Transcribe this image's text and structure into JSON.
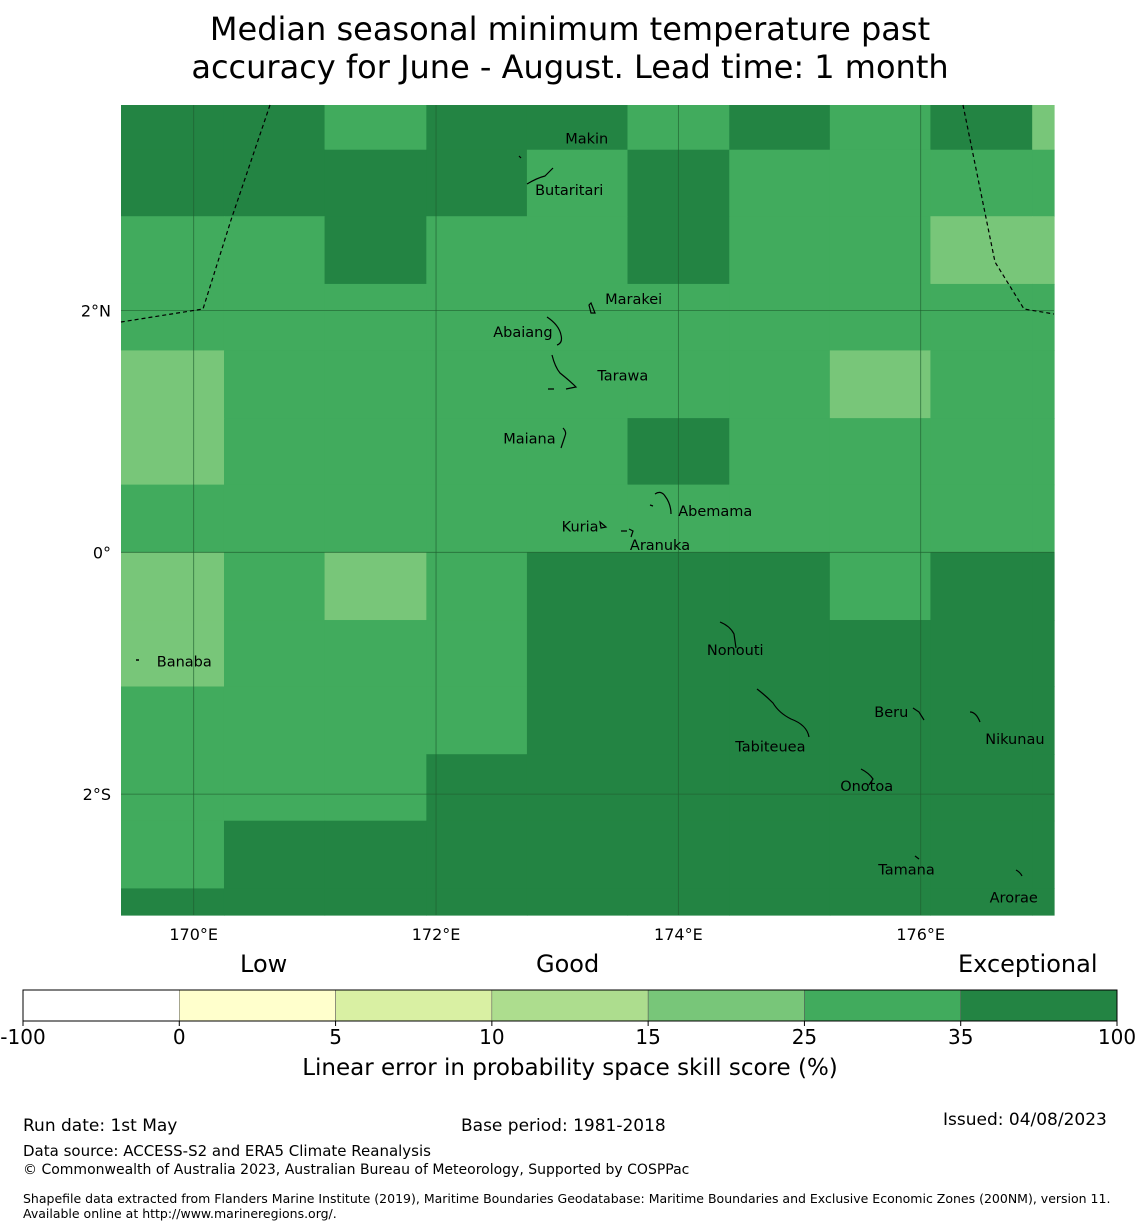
{
  "title": {
    "line1": "Median seasonal minimum temperature past",
    "line2": "accuracy for June - August. Lead time: 1 month"
  },
  "map": {
    "lon_ticks": [
      "170°E",
      "172°E",
      "174°E",
      "176°E"
    ],
    "lat_ticks": [
      "2°N",
      "0°",
      "2°S"
    ],
    "lon_values": [
      170,
      172,
      174,
      176
    ],
    "lat_values": [
      2,
      0,
      -2
    ],
    "extent": {
      "lon_min": 169.4,
      "lon_max": 177.1,
      "lat_min": -3.0,
      "lat_max": 3.7
    },
    "grid_lons": [
      169.4,
      170.25,
      171.08,
      171.92,
      172.75,
      173.58,
      174.42,
      175.25,
      176.08,
      176.92,
      177.1
    ],
    "grid_lats": [
      3.7,
      3.33,
      2.78,
      2.22,
      1.67,
      1.11,
      0.56,
      0.0,
      -0.56,
      -1.11,
      -1.67,
      -2.22,
      -2.78,
      -3.0
    ],
    "cells": [
      [
        3,
        3,
        2,
        3,
        3,
        2,
        3,
        2,
        3,
        1
      ],
      [
        3,
        3,
        3,
        3,
        2,
        3,
        2,
        2,
        2,
        2
      ],
      [
        2,
        2,
        3,
        2,
        2,
        3,
        2,
        2,
        1,
        1
      ],
      [
        2,
        2,
        2,
        2,
        2,
        2,
        2,
        2,
        2,
        2
      ],
      [
        1,
        2,
        2,
        2,
        2,
        2,
        2,
        1,
        2,
        2
      ],
      [
        1,
        2,
        2,
        2,
        2,
        3,
        2,
        2,
        2,
        2
      ],
      [
        2,
        2,
        2,
        2,
        2,
        2,
        2,
        2,
        2,
        2
      ],
      [
        1,
        2,
        1,
        2,
        3,
        3,
        3,
        2,
        3,
        3
      ],
      [
        1,
        2,
        2,
        2,
        3,
        3,
        3,
        3,
        3,
        3
      ],
      [
        2,
        2,
        2,
        2,
        3,
        3,
        3,
        3,
        3,
        3
      ],
      [
        2,
        2,
        2,
        3,
        3,
        3,
        3,
        3,
        3,
        3
      ],
      [
        2,
        3,
        3,
        3,
        3,
        3,
        3,
        3,
        3,
        3
      ],
      [
        3,
        3,
        3,
        3,
        3,
        3,
        3,
        3,
        3,
        3
      ]
    ],
    "cell_colors": [
      "#acdf8f",
      "#78c679",
      "#41ab5d",
      "#238443"
    ],
    "islands": [
      {
        "name": "Makin",
        "lon": 173.0,
        "lat": 3.38
      },
      {
        "name": "Butaritari",
        "lon": 172.9,
        "lat": 3.07
      },
      {
        "name": "Marakei",
        "lon": 173.28,
        "lat": 2.02
      },
      {
        "name": "Abaiang",
        "lon": 173.0,
        "lat": 1.83
      },
      {
        "name": "Tarawa",
        "lon": 173.1,
        "lat": 1.42
      },
      {
        "name": "Maiana",
        "lon": 173.0,
        "lat": 0.95
      },
      {
        "name": "Abemama",
        "lon": 173.9,
        "lat": 0.4
      },
      {
        "name": "Kuria",
        "lon": 173.4,
        "lat": 0.22
      },
      {
        "name": "Aranuka",
        "lon": 173.6,
        "lat": 0.17
      },
      {
        "name": "Nonouti",
        "lon": 174.4,
        "lat": -0.65
      },
      {
        "name": "Banaba",
        "lon": 169.53,
        "lat": -0.86
      },
      {
        "name": "Tabiteuea",
        "lon": 174.8,
        "lat": -1.4
      },
      {
        "name": "Beru",
        "lon": 175.98,
        "lat": -1.33
      },
      {
        "name": "Nikunau",
        "lon": 176.45,
        "lat": -1.37
      },
      {
        "name": "Onotoa",
        "lon": 175.55,
        "lat": -1.8
      },
      {
        "name": "Tamana",
        "lon": 175.98,
        "lat": -2.5
      },
      {
        "name": "Arorae",
        "lon": 176.8,
        "lat": -2.65
      }
    ]
  },
  "colorbar": {
    "category_labels": [
      "Low",
      "Good",
      "Exceptional"
    ],
    "ticks": [
      "-100",
      "0",
      "5",
      "10",
      "15",
      "25",
      "35",
      "100"
    ],
    "colors": [
      "#ffffff",
      "#ffffcc",
      "#d9f0a3",
      "#addd8e",
      "#78c679",
      "#41ab5d",
      "#238443"
    ],
    "title": "Linear error in probability space skill score (%)"
  },
  "footer": {
    "run_date": "Run date: 1st May",
    "base_period": "Base period: 1981-2018",
    "issued": "Issued: 04/08/2023",
    "data_source": "Data source: ACCESS-S2 and ERA5 Climate Reanalysis",
    "copyright": "© Commonwealth of Australia 2023, Australian Bureau of Meteorology, Supported by COSPPac",
    "shapefile": "Shapefile data extracted from Flanders Marine Institute (2019), Maritime Boundaries Geodatabase: Maritime Boundaries and Exclusive Economic Zones (200NM), version 11. Available online at http://www.marineregions.org/."
  }
}
